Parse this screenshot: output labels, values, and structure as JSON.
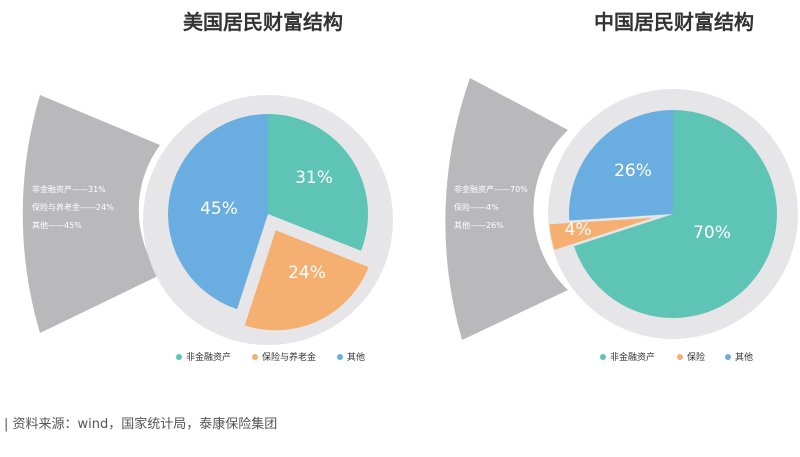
{
  "colors": {
    "teal": "#5ec4b6",
    "orange": "#f5b071",
    "blue": "#6aaee1",
    "fan": "#b9b9bb",
    "ring": "#e6e6e8"
  },
  "chart_data": [
    {
      "type": "pie",
      "title": "美国居民财富结构",
      "slices": [
        {
          "name": "非金融资产",
          "value": 31,
          "label": "31%",
          "color": "#5ec4b6"
        },
        {
          "name": "保险与养老金",
          "value": 24,
          "label": "24%",
          "color": "#f5b071"
        },
        {
          "name": "其他",
          "value": 45,
          "label": "45%",
          "color": "#6aaee1"
        }
      ],
      "side_labels": [
        "非金融资产——31%",
        "保险与养老金——24%",
        "其他——45%"
      ],
      "legend": [
        "非金融资产",
        "保险与养老金",
        "其他"
      ],
      "legend_placement": "bottom"
    },
    {
      "type": "pie",
      "title": "中国居民财富结构",
      "slices": [
        {
          "name": "非金融资产",
          "value": 70,
          "label": "70%",
          "color": "#5ec4b6"
        },
        {
          "name": "保险",
          "value": 4,
          "label": "4%",
          "color": "#f5b071"
        },
        {
          "name": "其他",
          "value": 26,
          "label": "26%",
          "color": "#6aaee1"
        }
      ],
      "side_labels": [
        "非金融资产——70%",
        "保险——4%",
        "其他——26%"
      ],
      "legend": [
        "非金融资产",
        "保险",
        "其他"
      ],
      "legend_placement": "bottom"
    }
  ],
  "source": "| 资料来源：wind，国家统计局，泰康保险集团"
}
